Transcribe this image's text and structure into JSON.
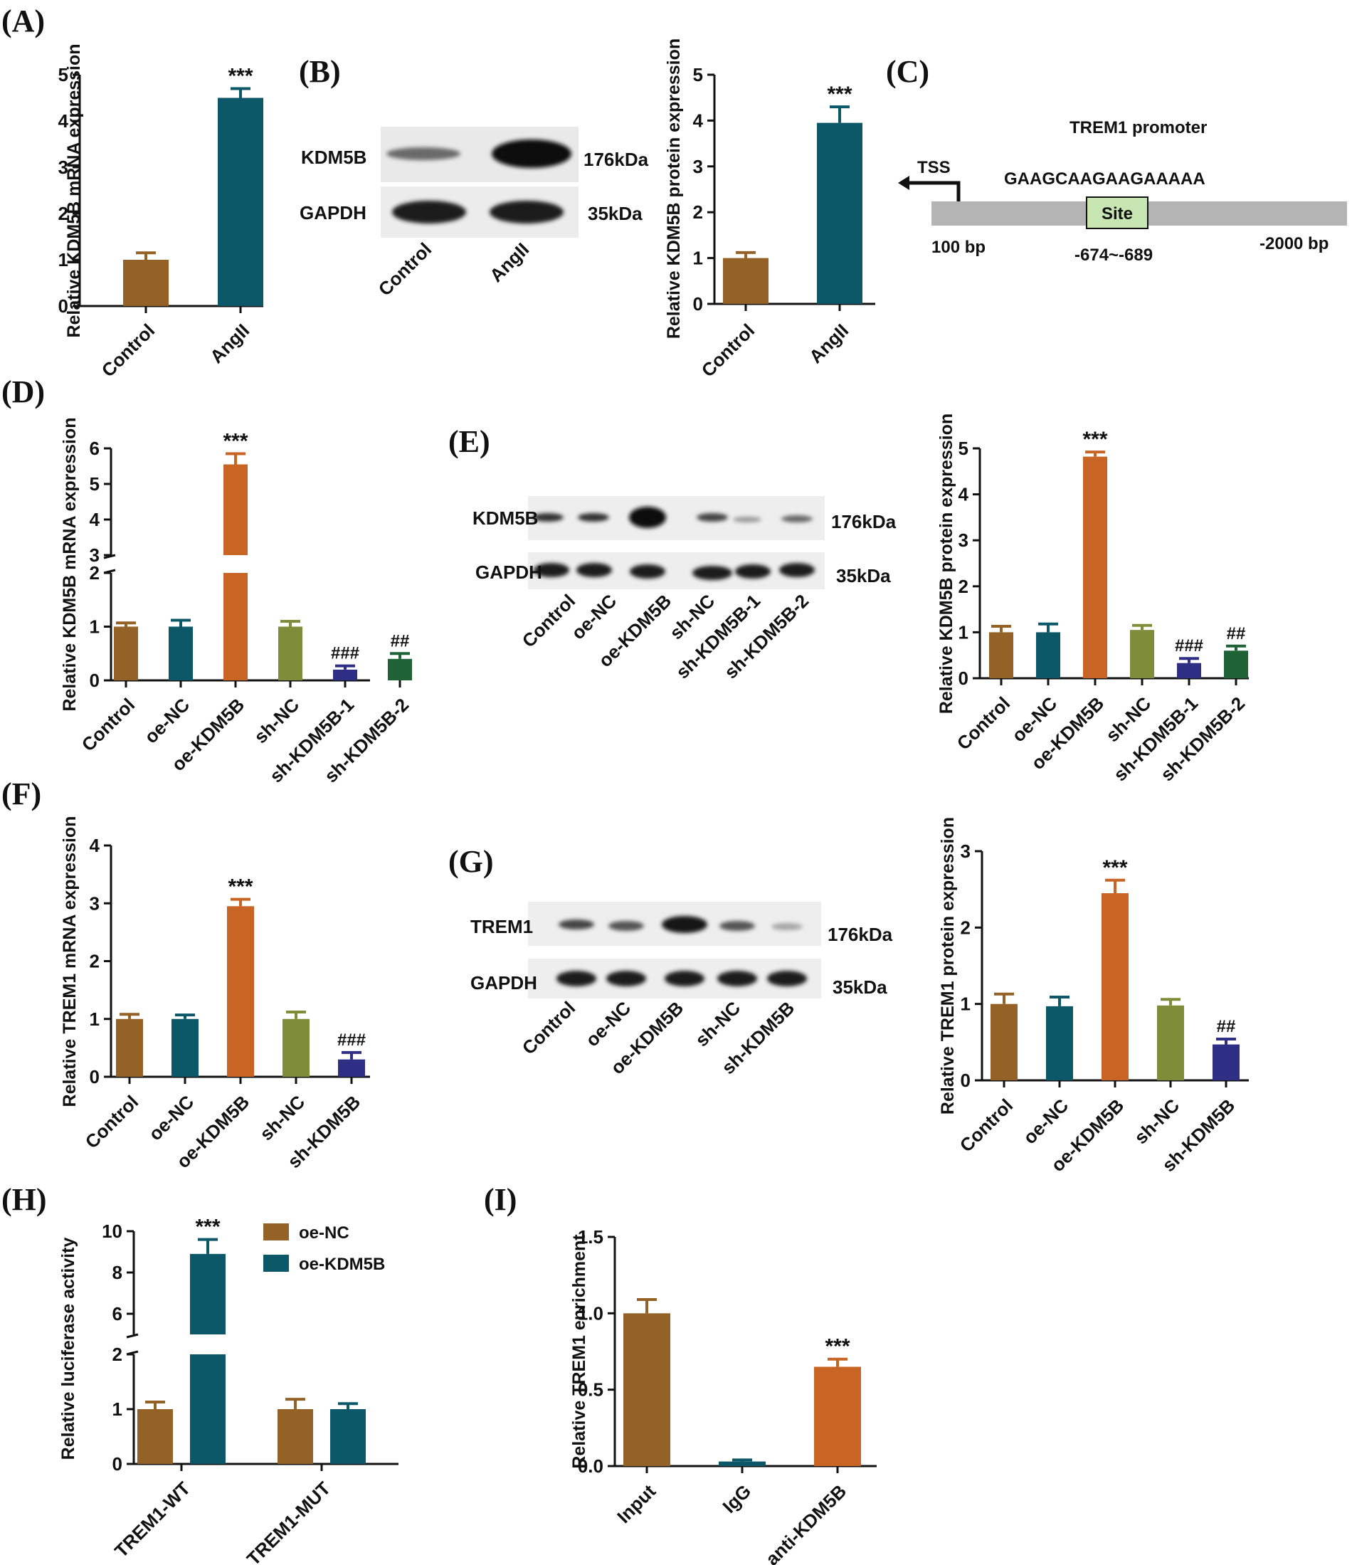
{
  "colors": {
    "brown": "#946127",
    "teal": "#0c5868",
    "orange": "#c96524",
    "olive": "#7f8c3a",
    "navy": "#2e2f84",
    "green": "#1f6236",
    "axis": "#111111",
    "promoter": "#b4b4b4",
    "site": "#c7e6b2"
  },
  "panels": {
    "A": "(A)",
    "B": "(B)",
    "C": "(C)",
    "D": "(D)",
    "E": "(E)",
    "F": "(F)",
    "G": "(G)",
    "H": "(H)",
    "I": "(I)"
  },
  "blots": {
    "B": {
      "rows": [
        {
          "label": "KDM5B",
          "kda": "176kDa"
        },
        {
          "label": "GAPDH",
          "kda": "35kDa"
        }
      ],
      "lanes": [
        "Control",
        "AngII"
      ]
    },
    "E": {
      "rows": [
        {
          "label": "KDM5B",
          "kda": "176kDa"
        },
        {
          "label": "GAPDH",
          "kda": "35kDa"
        }
      ],
      "lanes": [
        "Control",
        "oe-NC",
        "oe-KDM5B",
        "sh-NC",
        "sh-KDM5B-1",
        "sh-KDM5B-2"
      ]
    },
    "G": {
      "rows": [
        {
          "label": "TREM1",
          "kda": "176kDa"
        },
        {
          "label": "GAPDH",
          "kda": "35kDa"
        }
      ],
      "lanes": [
        "Control",
        "oe-NC",
        "oe-KDM5B",
        "sh-NC",
        "sh-KDM5B"
      ]
    }
  },
  "promoter": {
    "title": "TREM1 promoter",
    "tss": "TSS",
    "sequence": "GAAGCAAGAAGAAAAA",
    "site": "Site",
    "left": "100 bp",
    "position": "-674~-689",
    "right": "-2000 bp"
  },
  "chart_data": [
    {
      "id": "A",
      "type": "bar",
      "ylabel": "Relative KDM5B mRNA expression",
      "categories": [
        "Control",
        "AngII"
      ],
      "values": [
        1.0,
        4.5
      ],
      "errors": [
        0.15,
        0.2
      ],
      "colors": [
        "brown",
        "teal"
      ],
      "annotations": [
        "",
        "***"
      ],
      "ylim": [
        0,
        5
      ],
      "yticks": [
        "0",
        "1",
        "2",
        "3",
        "4",
        "5"
      ]
    },
    {
      "id": "B",
      "type": "bar",
      "ylabel": "Relative KDM5B protein expression",
      "categories": [
        "Control",
        "AngII"
      ],
      "values": [
        1.0,
        3.95
      ],
      "errors": [
        0.12,
        0.35
      ],
      "colors": [
        "brown",
        "teal"
      ],
      "annotations": [
        "",
        "***"
      ],
      "ylim": [
        0,
        5
      ],
      "yticks": [
        "0",
        "1",
        "2",
        "3",
        "4",
        "5"
      ]
    },
    {
      "id": "D",
      "type": "bar",
      "axis_break": true,
      "ylabel": "Relative KDM5B mRNA expression",
      "categories": [
        "Control",
        "oe-NC",
        "oe-KDM5B",
        "sh-NC",
        "sh-KDM5B-1",
        "sh-KDM5B-2"
      ],
      "values": [
        1.0,
        1.0,
        5.55,
        1.0,
        0.2,
        0.4
      ],
      "errors": [
        0.07,
        0.12,
        0.3,
        0.1,
        0.07,
        0.1
      ],
      "colors": [
        "brown",
        "teal",
        "orange",
        "olive",
        "navy",
        "green"
      ],
      "annotations": [
        "",
        "",
        "***",
        "",
        "###",
        "##"
      ],
      "ylim_lower": [
        0,
        2
      ],
      "ylim_upper": [
        3,
        6
      ],
      "yticks_lower": [
        "0",
        "1",
        "2"
      ],
      "yticks_upper": [
        "3",
        "4",
        "5",
        "6"
      ]
    },
    {
      "id": "E",
      "type": "bar",
      "ylabel": "Relative KDM5B protein expression",
      "categories": [
        "Control",
        "oe-NC",
        "oe-KDM5B",
        "sh-NC",
        "sh-KDM5B-1",
        "sh-KDM5B-2"
      ],
      "values": [
        1.0,
        1.0,
        4.82,
        1.05,
        0.33,
        0.6
      ],
      "errors": [
        0.13,
        0.18,
        0.1,
        0.1,
        0.1,
        0.1
      ],
      "colors": [
        "brown",
        "teal",
        "orange",
        "olive",
        "navy",
        "green"
      ],
      "annotations": [
        "",
        "",
        "***",
        "",
        "###",
        "##"
      ],
      "ylim": [
        0,
        5
      ],
      "yticks": [
        "0",
        "1",
        "2",
        "3",
        "4",
        "5"
      ]
    },
    {
      "id": "F",
      "type": "bar",
      "ylabel": "Relative TREM1 mRNA expression",
      "categories": [
        "Control",
        "oe-NC",
        "oe-KDM5B",
        "sh-NC",
        "sh-KDM5B"
      ],
      "values": [
        1.0,
        1.0,
        2.95,
        1.0,
        0.3
      ],
      "errors": [
        0.08,
        0.07,
        0.12,
        0.12,
        0.12
      ],
      "colors": [
        "brown",
        "teal",
        "orange",
        "olive",
        "navy"
      ],
      "annotations": [
        "",
        "",
        "***",
        "",
        "###"
      ],
      "ylim": [
        0,
        4
      ],
      "yticks": [
        "0",
        "1",
        "2",
        "3",
        "4"
      ]
    },
    {
      "id": "G",
      "type": "bar",
      "ylabel": "Relative TREM1 protein expression",
      "categories": [
        "Control",
        "oe-NC",
        "oe-KDM5B",
        "sh-NC",
        "sh-KDM5B"
      ],
      "values": [
        1.0,
        0.97,
        2.45,
        0.98,
        0.47
      ],
      "errors": [
        0.13,
        0.12,
        0.17,
        0.08,
        0.07
      ],
      "colors": [
        "brown",
        "teal",
        "orange",
        "olive",
        "navy"
      ],
      "annotations": [
        "",
        "",
        "***",
        "",
        "##"
      ],
      "ylim": [
        0,
        3
      ],
      "yticks": [
        "0",
        "1",
        "2",
        "3"
      ]
    },
    {
      "id": "H",
      "type": "bar",
      "axis_break": true,
      "grouped": true,
      "ylabel": "Relative luciferase activity",
      "categories": [
        "TREM1-WT",
        "TREM1-MUT"
      ],
      "series": [
        {
          "name": "oe-NC",
          "color": "brown",
          "values": [
            1.0,
            1.0
          ],
          "errors": [
            0.13,
            0.18
          ]
        },
        {
          "name": "oe-KDM5B",
          "color": "teal",
          "values": [
            8.9,
            1.0
          ],
          "errors": [
            0.7,
            0.1
          ]
        }
      ],
      "annotations": [
        [
          "",
          "***"
        ],
        [
          "",
          ""
        ]
      ],
      "ylim_lower": [
        0,
        2
      ],
      "ylim_upper": [
        5,
        10
      ],
      "yticks_lower": [
        "0",
        "1",
        "2"
      ],
      "yticks_upper": [
        "6",
        "8",
        "10"
      ]
    },
    {
      "id": "I",
      "type": "bar",
      "ylabel": "Relative TREM1 enrichment",
      "categories": [
        "Input",
        "IgG",
        "anti-KDM5B"
      ],
      "values": [
        1.0,
        0.03,
        0.65
      ],
      "errors": [
        0.09,
        0.01,
        0.05
      ],
      "colors": [
        "brown",
        "teal",
        "orange"
      ],
      "annotations": [
        "",
        "",
        "***"
      ],
      "ylim": [
        0,
        1.5
      ],
      "yticks": [
        "0.0",
        "0.5",
        "1.0",
        "1.5"
      ]
    }
  ]
}
